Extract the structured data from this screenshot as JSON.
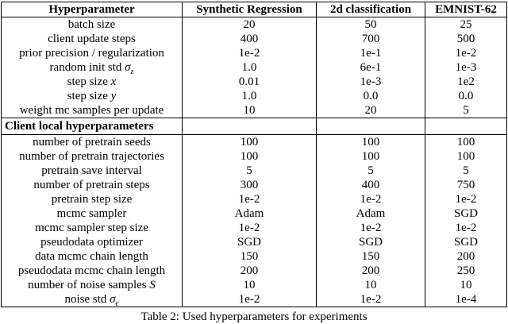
{
  "table": {
    "columns": [
      "Hyperparameter",
      "Synthetic Regression",
      "2d classification",
      "EMNIST-62"
    ],
    "sections": [
      {
        "header": null,
        "rows": [
          {
            "label": "batch size",
            "values": [
              "20",
              "50",
              "25"
            ]
          },
          {
            "label": "client update steps",
            "values": [
              "400",
              "700",
              "500"
            ]
          },
          {
            "label": "prior precision / regularization",
            "values": [
              "1e-2",
              "1e-1",
              "1e-2"
            ]
          },
          {
            "label": "random init std",
            "math": "σ",
            "sub": "z",
            "values": [
              "1.0",
              "6e-1",
              "1e-3"
            ]
          },
          {
            "label": "step size",
            "math": "x",
            "values": [
              "0.01",
              "1e-3",
              "1e2"
            ]
          },
          {
            "label": "step size",
            "math": "y",
            "values": [
              "1.0",
              "0.0",
              "0.0"
            ]
          },
          {
            "label": "weight mc samples per update",
            "values": [
              "10",
              "20",
              "5"
            ]
          }
        ]
      },
      {
        "header": "Client local hyperparameters",
        "rows": [
          {
            "label": "number of pretrain seeds",
            "values": [
              "100",
              "100",
              "100"
            ]
          },
          {
            "label": "number of pretrain trajectories",
            "values": [
              "100",
              "100",
              "100"
            ]
          },
          {
            "label": "pretrain save interval",
            "values": [
              "5",
              "5",
              "5"
            ]
          },
          {
            "label": "number of pretrain steps",
            "values": [
              "300",
              "400",
              "750"
            ]
          },
          {
            "label": "pretrain step size",
            "values": [
              "1e-2",
              "1e-2",
              "1e-2"
            ]
          },
          {
            "label": "mcmc sampler",
            "values": [
              "Adam",
              "Adam",
              "SGD"
            ]
          },
          {
            "label": "mcmc sampler step size",
            "values": [
              "1e-2",
              "1e-2",
              "1e-2"
            ]
          },
          {
            "label": "pseudodata optimizer",
            "values": [
              "SGD",
              "SGD",
              "SGD"
            ]
          },
          {
            "label": "data mcmc chain length",
            "values": [
              "150",
              "150",
              "200"
            ]
          },
          {
            "label": "pseudodata mcmc chain length",
            "values": [
              "200",
              "200",
              "250"
            ]
          },
          {
            "label": "number of noise samples",
            "math": "S",
            "values": [
              "10",
              "10",
              "10"
            ]
          },
          {
            "label": "noise std",
            "math": "σ",
            "sub": "ϵ",
            "values": [
              "1e-2",
              "1e-2",
              "1e-4"
            ]
          }
        ]
      }
    ],
    "caption": "Table 2: Used hyperparameters for experiments"
  },
  "colors": {
    "text": "#000000",
    "border": "#000000",
    "background": "#ffffff"
  }
}
